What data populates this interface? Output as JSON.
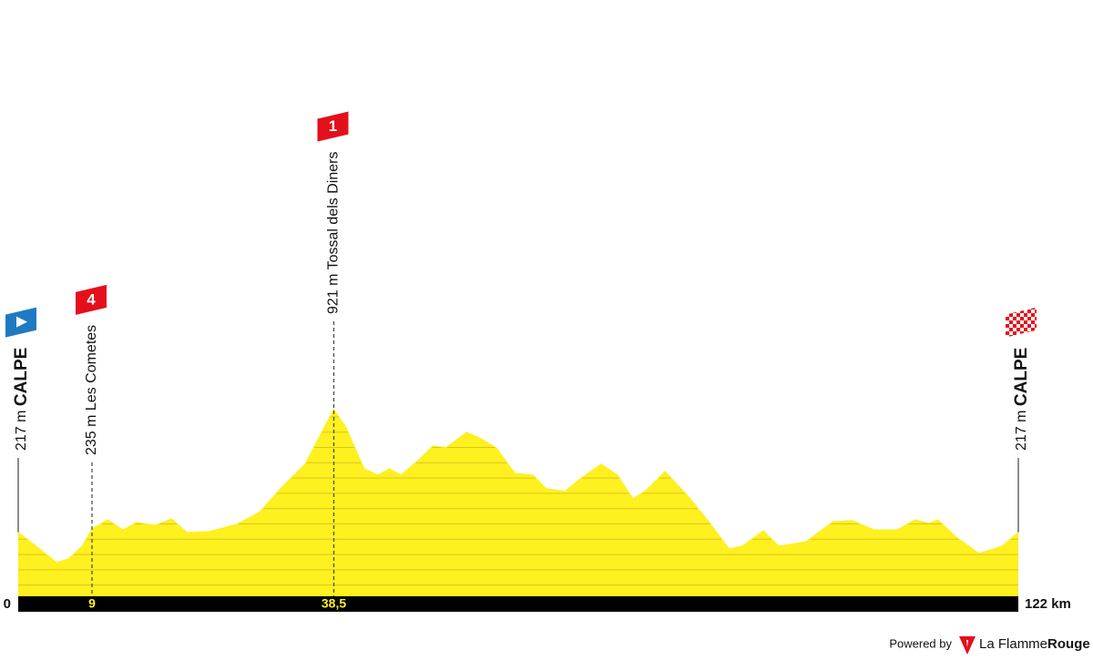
{
  "chart_data": {
    "type": "area",
    "color": "#fff01f",
    "x": [
      0,
      2.2,
      4.7,
      6.1,
      7.8,
      9,
      10.9,
      12.8,
      14.4,
      16.7,
      18.7,
      20.6,
      23.3,
      26.7,
      29.4,
      32.2,
      35,
      37.6,
      38.5,
      40,
      42.2,
      43.9,
      45.3,
      46.7,
      48.9,
      50.6,
      52.2,
      54.7,
      56.4,
      58.3,
      60.6,
      62.8,
      64.4,
      66.7,
      68.3,
      71.1,
      73.1,
      75,
      76.7,
      78.9,
      81.7,
      84.4,
      86.7,
      88.3,
      90.9,
      92.8,
      96.1,
      99.4,
      101.7,
      104.4,
      107.2,
      109.4,
      111.1,
      112.2,
      114.4,
      117.2,
      120,
      122
    ],
    "values": [
      217,
      137,
      43,
      64,
      137,
      235,
      289,
      231,
      273,
      257,
      294,
      216,
      221,
      263,
      331,
      477,
      608,
      843,
      921,
      817,
      581,
      545,
      581,
      545,
      634,
      712,
      702,
      790,
      754,
      702,
      555,
      545,
      467,
      451,
      514,
      608,
      545,
      409,
      461,
      566,
      425,
      268,
      122,
      137,
      226,
      137,
      163,
      278,
      284,
      231,
      231,
      289,
      268,
      289,
      190,
      96,
      137,
      217
    ],
    "xlim": [
      0,
      122
    ],
    "ylim": [
      -150,
      1050
    ],
    "xticks": [
      0,
      {
        "value": 122,
        "label": "122 km"
      }
    ],
    "markers": [
      {
        "kind": "start",
        "name": "CALPE",
        "elevation": {
          "value": 217,
          "label": "217 m"
        }
      },
      {
        "kind": "climb",
        "name": "Les Cometes",
        "category": 4,
        "elevation": {
          "value": 235,
          "label": "235 m"
        },
        "km": 9
      },
      {
        "kind": "climb",
        "name": "Tossal dels Diners",
        "category": 1,
        "elevation": {
          "value": 921,
          "label": "921 m"
        },
        "km": {
          "value": 38.5,
          "label": "38,5"
        }
      },
      {
        "kind": "finish",
        "name": "CALPE",
        "elevation": {
          "value": 217,
          "label": "217 m"
        }
      }
    ]
  },
  "footer": {
    "powered_by": "Powered by",
    "brand": "La Flamme",
    "brand_bold": "Rouge"
  }
}
